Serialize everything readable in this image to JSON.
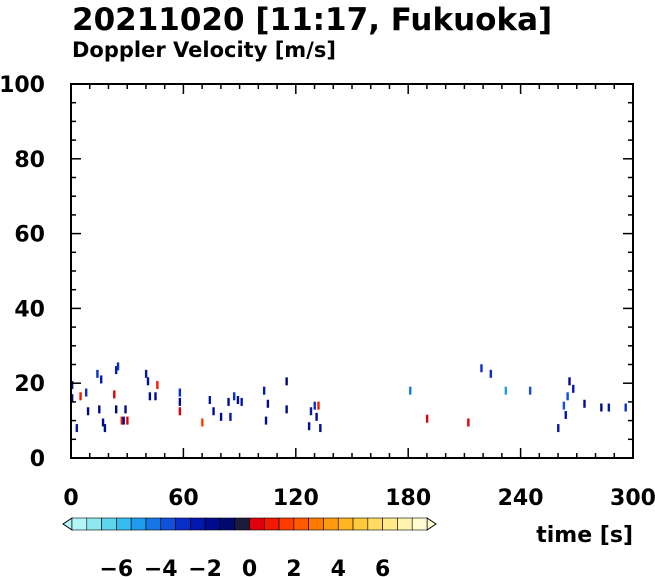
{
  "title": "20211020 [11:17, Fukuoka]",
  "subtitle": "Doppler Velocity [m/s]",
  "xlabel": "time [s]",
  "chart_data": {
    "type": "scatter",
    "title": "20211020 [11:17, Fukuoka]",
    "subtitle": "Doppler Velocity [m/s]",
    "xlabel": "time [s]",
    "ylabel": "",
    "xlim": [
      0,
      300
    ],
    "ylim": [
      0,
      100
    ],
    "xticks": [
      0,
      60,
      120,
      180,
      240,
      300
    ],
    "yticks": [
      0,
      20,
      40,
      60,
      80,
      100
    ],
    "grid": false,
    "colorbar": {
      "range": [
        -8,
        8
      ],
      "tick_labels": [
        "−6",
        "−4",
        "−2",
        "0",
        "2",
        "4",
        "6"
      ],
      "tick_values": [
        -6,
        -4,
        -2,
        0,
        2,
        4,
        6
      ],
      "colors": [
        "#b3f5f7",
        "#8ee8f0",
        "#5fd5ec",
        "#34bdf0",
        "#1f9cee",
        "#1577e6",
        "#1150d8",
        "#0a2fc8",
        "#0418b0",
        "#000c90",
        "#000a6e",
        "#1a1a3a",
        "#e0000a",
        "#f21a00",
        "#ff3c00",
        "#ff5a00",
        "#ff7a00",
        "#ff9a10",
        "#ffb420",
        "#ffc93c",
        "#ffdb64",
        "#ffe98a",
        "#fff3b0",
        "#fffbd2"
      ]
    },
    "points": [
      {
        "x": 0.5,
        "y": 19.5,
        "v": -1.5
      },
      {
        "x": 0.5,
        "y": 16.0,
        "v": -2.0
      },
      {
        "x": 3,
        "y": 8.0,
        "v": -2.5
      },
      {
        "x": 5,
        "y": 16.5,
        "v": 1.0
      },
      {
        "x": 8,
        "y": 17.5,
        "v": -3.0
      },
      {
        "x": 9,
        "y": 12.5,
        "v": -1.0
      },
      {
        "x": 14,
        "y": 22.5,
        "v": -3.0
      },
      {
        "x": 15,
        "y": 13.0,
        "v": -2.0
      },
      {
        "x": 16,
        "y": 21.0,
        "v": -2.5
      },
      {
        "x": 17,
        "y": 9.5,
        "v": -2.0
      },
      {
        "x": 18,
        "y": 8.0,
        "v": -1.5
      },
      {
        "x": 23,
        "y": 17.0,
        "v": 0.5
      },
      {
        "x": 24,
        "y": 13.0,
        "v": -1.0
      },
      {
        "x": 24,
        "y": 23.5,
        "v": -2.5
      },
      {
        "x": 25,
        "y": 24.5,
        "v": -3.0
      },
      {
        "x": 27,
        "y": 10.0,
        "v": 1.0
      },
      {
        "x": 28,
        "y": 10.0,
        "v": -1.5
      },
      {
        "x": 29,
        "y": 13.0,
        "v": -2.0
      },
      {
        "x": 30,
        "y": 10.0,
        "v": 0.5
      },
      {
        "x": 40,
        "y": 22.5,
        "v": -2.5
      },
      {
        "x": 41,
        "y": 20.5,
        "v": -2.0
      },
      {
        "x": 42,
        "y": 16.5,
        "v": -1.5
      },
      {
        "x": 45,
        "y": 16.5,
        "v": -2.0
      },
      {
        "x": 46,
        "y": 19.5,
        "v": 1.0
      },
      {
        "x": 58,
        "y": 17.5,
        "v": -3.0
      },
      {
        "x": 58,
        "y": 15.0,
        "v": -2.0
      },
      {
        "x": 58,
        "y": 12.5,
        "v": 0.5
      },
      {
        "x": 70,
        "y": 9.5,
        "v": 1.5
      },
      {
        "x": 74,
        "y": 15.5,
        "v": -2.5
      },
      {
        "x": 76,
        "y": 12.5,
        "v": -2.0
      },
      {
        "x": 80,
        "y": 11.0,
        "v": -1.5
      },
      {
        "x": 84,
        "y": 15.0,
        "v": -2.0
      },
      {
        "x": 85,
        "y": 11.0,
        "v": -2.5
      },
      {
        "x": 87,
        "y": 16.5,
        "v": -3.0
      },
      {
        "x": 89,
        "y": 15.5,
        "v": -2.0
      },
      {
        "x": 91,
        "y": 15.0,
        "v": -2.5
      },
      {
        "x": 103,
        "y": 18.0,
        "v": -2.5
      },
      {
        "x": 104,
        "y": 10.0,
        "v": -2.0
      },
      {
        "x": 105,
        "y": 14.5,
        "v": -1.5
      },
      {
        "x": 115,
        "y": 20.5,
        "v": -1.0
      },
      {
        "x": 115,
        "y": 13.0,
        "v": -2.0
      },
      {
        "x": 127,
        "y": 8.5,
        "v": -2.0
      },
      {
        "x": 128,
        "y": 12.5,
        "v": -2.5
      },
      {
        "x": 130,
        "y": 14.0,
        "v": -3.0
      },
      {
        "x": 131,
        "y": 11.0,
        "v": -2.0
      },
      {
        "x": 132,
        "y": 14.0,
        "v": 1.0
      },
      {
        "x": 133,
        "y": 8.0,
        "v": -1.5
      },
      {
        "x": 181,
        "y": 18.0,
        "v": -4.5
      },
      {
        "x": 190,
        "y": 10.5,
        "v": 0.5
      },
      {
        "x": 212,
        "y": 9.5,
        "v": 0.5
      },
      {
        "x": 219,
        "y": 24.0,
        "v": -3.0
      },
      {
        "x": 224,
        "y": 22.5,
        "v": -3.0
      },
      {
        "x": 232,
        "y": 18.0,
        "v": -5.0
      },
      {
        "x": 245,
        "y": 18.0,
        "v": -3.5
      },
      {
        "x": 260,
        "y": 8.0,
        "v": -2.5
      },
      {
        "x": 263,
        "y": 14.0,
        "v": -4.0
      },
      {
        "x": 264,
        "y": 11.5,
        "v": -2.5
      },
      {
        "x": 265,
        "y": 16.5,
        "v": -3.5
      },
      {
        "x": 266,
        "y": 20.5,
        "v": -2.0
      },
      {
        "x": 268,
        "y": 18.5,
        "v": -2.5
      },
      {
        "x": 274,
        "y": 14.5,
        "v": -1.5
      },
      {
        "x": 283,
        "y": 13.5,
        "v": -2.0
      },
      {
        "x": 287,
        "y": 13.5,
        "v": -2.5
      },
      {
        "x": 296,
        "y": 13.5,
        "v": -3.0
      }
    ]
  }
}
